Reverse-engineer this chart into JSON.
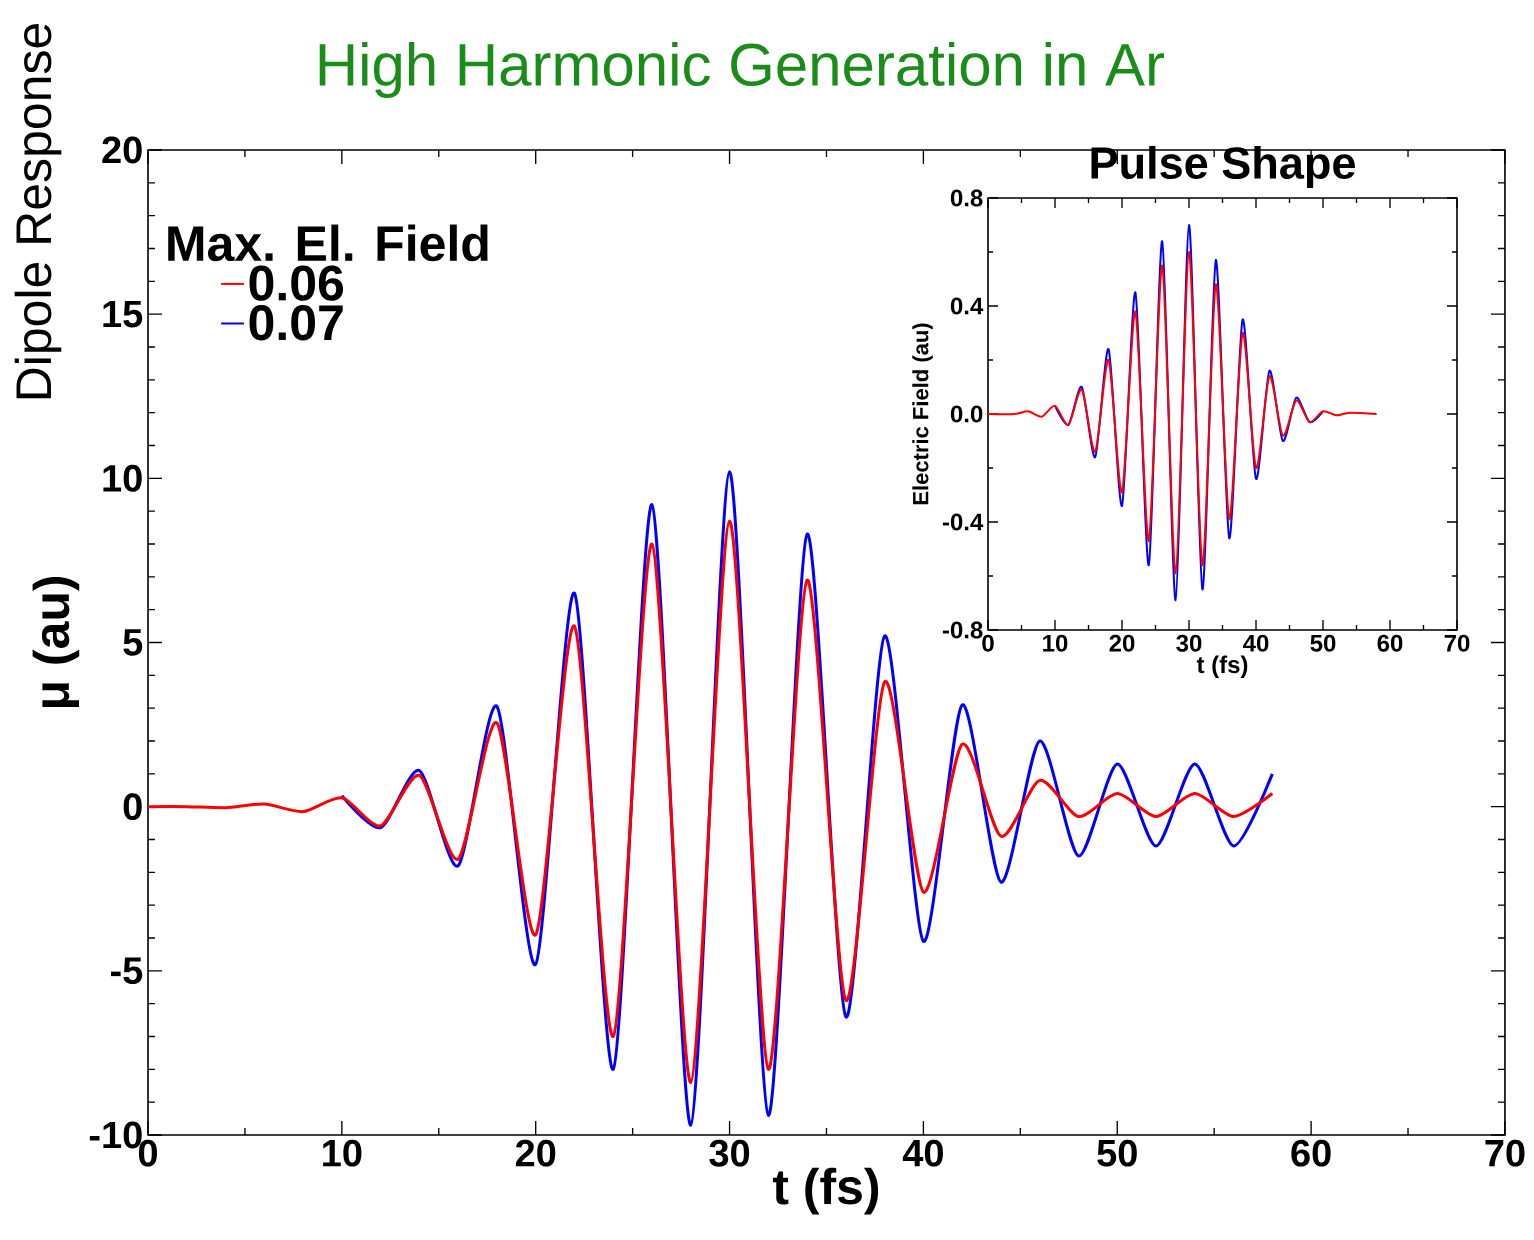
{
  "chart_data": [
    {
      "type": "line",
      "title": "High Harmonic  Generation in Ar",
      "annotations": [
        "Dipole Response"
      ],
      "xlabel": "t (fs)",
      "ylabel": "μ (au)",
      "legend_title": "Max. El. Field",
      "legend": "top left",
      "xlim": [
        0,
        70
      ],
      "ylim": [
        -10,
        20
      ],
      "xticks": [
        0,
        10,
        20,
        30,
        40,
        50,
        60,
        70
      ],
      "yticks": [
        -10,
        -5,
        0,
        5,
        10,
        15,
        20
      ],
      "series": [
        {
          "name": "0.06",
          "color": "#ff0000",
          "x": [
            0,
            2,
            4,
            6,
            8,
            10,
            12,
            14,
            16,
            18,
            20,
            22,
            24,
            26,
            28,
            30,
            32,
            34,
            36,
            38,
            40,
            42,
            44,
            46,
            48,
            50,
            52,
            54,
            56,
            58
          ],
          "values": [
            0,
            0,
            -0.03,
            0.08,
            -0.15,
            0.27,
            -0.58,
            0.95,
            -1.6,
            2.55,
            -3.9,
            5.5,
            -7.0,
            8.0,
            -8.4,
            8.7,
            -8.0,
            6.9,
            -5.9,
            3.8,
            -2.6,
            1.9,
            -0.9,
            0.8,
            -0.3,
            0.4,
            -0.3,
            0.4,
            -0.3,
            0.4
          ]
        },
        {
          "name": "0.07",
          "color": "#0000ff",
          "x": [
            10,
            12,
            14,
            16,
            18,
            20,
            22,
            24,
            26,
            28,
            30,
            32,
            34,
            36,
            38,
            40,
            42,
            44,
            46,
            48,
            50,
            52,
            54,
            56,
            58
          ],
          "values": [
            0.33,
            -0.64,
            1.1,
            -1.8,
            3.05,
            -4.8,
            6.5,
            -8.0,
            9.2,
            -9.7,
            10.2,
            -9.4,
            8.3,
            -6.4,
            5.2,
            -4.1,
            3.1,
            -2.3,
            2.0,
            -1.5,
            1.3,
            -1.2,
            1.3,
            -1.2,
            1.0
          ]
        }
      ]
    },
    {
      "type": "line",
      "title": "Pulse Shape",
      "xlabel": "t (fs)",
      "ylabel": "Electric Field (au)",
      "xlim": [
        0,
        70
      ],
      "ylim": [
        -0.8,
        0.8
      ],
      "xticks": [
        0,
        10,
        20,
        30,
        40,
        50,
        60,
        70
      ],
      "yticks": [
        -0.8,
        -0.4,
        {
          "value": 0,
          "label": "0.0"
        },
        0.4,
        0.8
      ],
      "series": [
        {
          "color": "#ff0000",
          "x": [
            0,
            4,
            6,
            8,
            10,
            12,
            14,
            16,
            18,
            20,
            22,
            24,
            26,
            28,
            30,
            32,
            34,
            36,
            38,
            40,
            42,
            44,
            46,
            48,
            50,
            52,
            54,
            58
          ],
          "values": [
            0,
            0,
            0.01,
            -0.01,
            0.03,
            -0.04,
            0.09,
            -0.14,
            0.2,
            -0.29,
            0.38,
            -0.47,
            0.55,
            -0.59,
            0.6,
            -0.56,
            0.48,
            -0.39,
            0.3,
            -0.2,
            0.14,
            -0.08,
            0.05,
            -0.03,
            0.01,
            -0.005,
            0.005,
            0
          ]
        },
        {
          "color": "#0000ff",
          "x": [
            10,
            12,
            14,
            16,
            18,
            20,
            22,
            24,
            26,
            28,
            30,
            32,
            34,
            36,
            38,
            40,
            42,
            44,
            46,
            48,
            50
          ],
          "values": [
            0.03,
            -0.04,
            0.1,
            -0.16,
            0.24,
            -0.34,
            0.45,
            -0.56,
            0.64,
            -0.69,
            0.7,
            -0.65,
            0.57,
            -0.46,
            0.35,
            -0.24,
            0.16,
            -0.1,
            0.06,
            -0.03,
            0.01
          ]
        }
      ]
    }
  ]
}
